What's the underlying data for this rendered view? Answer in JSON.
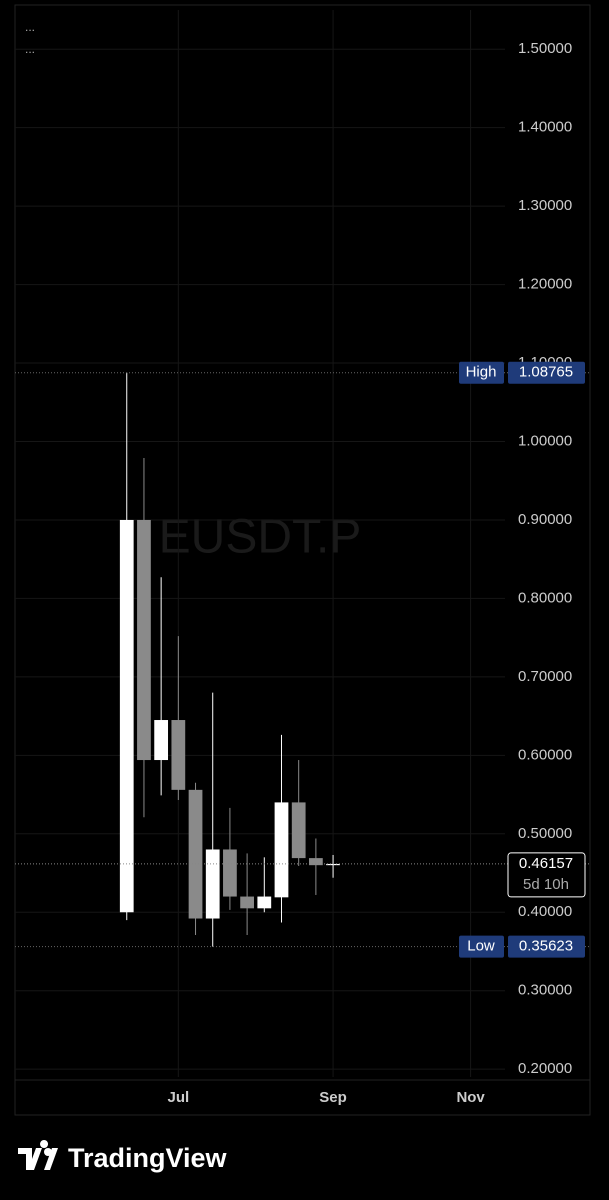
{
  "chart_data": {
    "type": "candlestick",
    "watermark": "EUSDT.P",
    "menu": [
      "...",
      "..."
    ],
    "brand": "TradingView",
    "x": [
      0,
      1,
      2,
      3,
      4,
      5,
      6,
      7,
      8,
      9,
      10,
      11,
      12
    ],
    "open": [
      0.4,
      0.9,
      0.594,
      0.645,
      0.556,
      0.392,
      0.48,
      0.42,
      0.405,
      0.419,
      0.54,
      0.469,
      0.46
    ],
    "high": [
      1.08765,
      0.979,
      0.827,
      0.752,
      0.565,
      0.68,
      0.533,
      0.475,
      0.47,
      0.626,
      0.594,
      0.494,
      0.473
    ],
    "low": [
      0.39,
      0.521,
      0.549,
      0.543,
      0.371,
      0.35623,
      0.403,
      0.371,
      0.4,
      0.387,
      0.459,
      0.422,
      0.444
    ],
    "close": [
      0.9,
      0.594,
      0.645,
      0.556,
      0.392,
      0.48,
      0.42,
      0.405,
      0.42,
      0.54,
      0.469,
      0.46,
      0.46157
    ],
    "up_color": "#ffffff",
    "down_color": "#8a8a8a",
    "xlim": [
      -6.5,
      22
    ],
    "xticks": [
      {
        "value": 3,
        "label": "Jul"
      },
      {
        "value": 12,
        "label": "Sep"
      },
      {
        "value": 20,
        "label": "Nov"
      }
    ],
    "ylim": [
      0.19,
      1.55
    ],
    "yticks": [
      {
        "value": 0.2,
        "label": "0.20000"
      },
      {
        "value": 0.3,
        "label": "0.30000"
      },
      {
        "value": 0.4,
        "label": "0.40000"
      },
      {
        "value": 0.5,
        "label": "0.50000"
      },
      {
        "value": 0.6,
        "label": "0.60000"
      },
      {
        "value": 0.7,
        "label": "0.70000"
      },
      {
        "value": 0.8,
        "label": "0.80000"
      },
      {
        "value": 0.9,
        "label": "0.90000"
      },
      {
        "value": 1.0,
        "label": "1.00000"
      },
      {
        "value": 1.1,
        "label": "1.10000"
      },
      {
        "value": 1.2,
        "label": "1.20000"
      },
      {
        "value": 1.3,
        "label": "1.30000"
      },
      {
        "value": 1.4,
        "label": "1.40000"
      },
      {
        "value": 1.5,
        "label": "1.50000"
      }
    ],
    "grid": true,
    "high_marker": {
      "label": "High",
      "value": 1.08765
    },
    "low_marker": {
      "label": "Low",
      "value": 0.35623
    },
    "last_price": {
      "value": 0.46157,
      "countdown": "5d 10h"
    }
  }
}
